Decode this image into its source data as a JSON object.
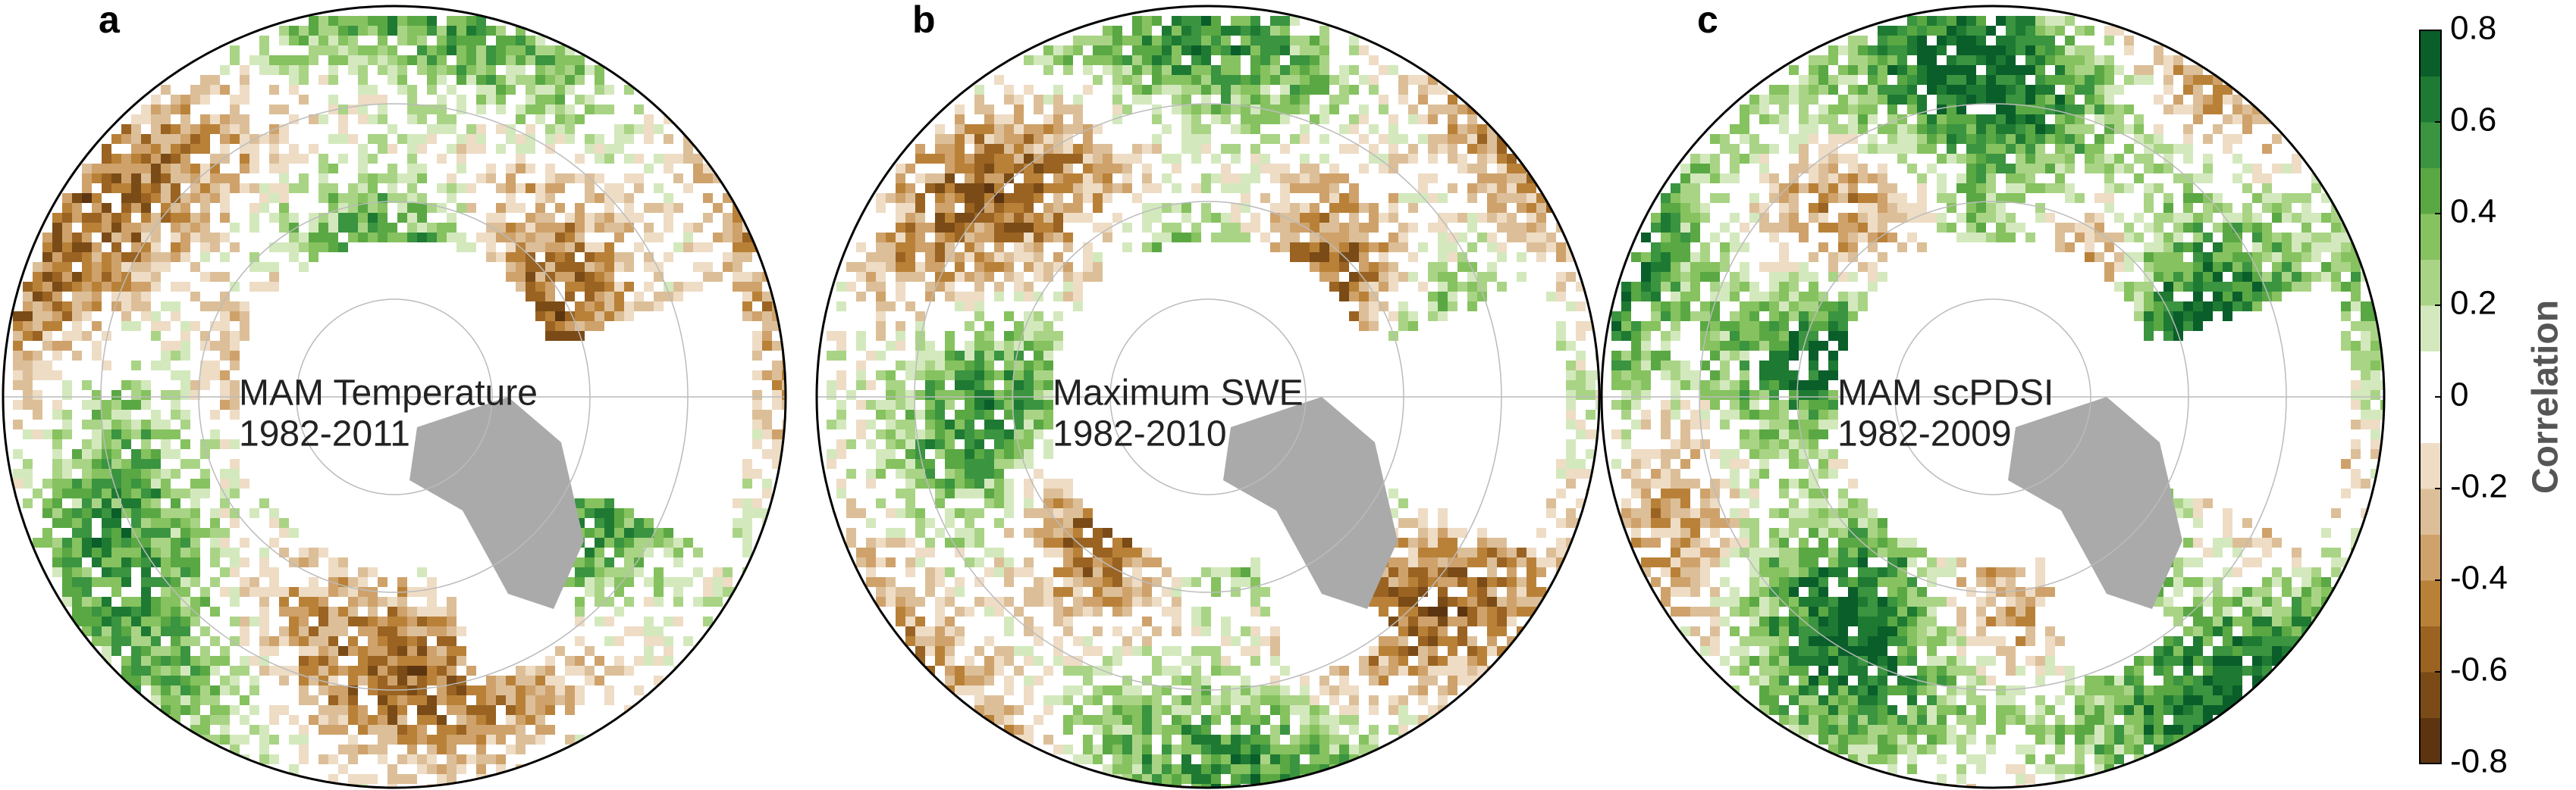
{
  "panels": [
    {
      "letter": "a",
      "variable": "MAM Temperature",
      "period": "1982-2011"
    },
    {
      "letter": "b",
      "variable": "Maximum SWE",
      "period": "1982-2010"
    },
    {
      "letter": "c",
      "variable": "MAM scPDSI",
      "period": "1982-2009"
    }
  ],
  "colorbar": {
    "label": "Correlation",
    "lim": [
      -0.8,
      0.8
    ],
    "ticks": [
      -0.8,
      -0.6,
      -0.4,
      -0.2,
      0,
      0.2,
      0.4,
      0.6,
      0.8
    ],
    "colors": [
      "#5c3510",
      "#7a4b16",
      "#9a6322",
      "#b98138",
      "#cfa26b",
      "#dcbf98",
      "#eedcc5",
      "#ffffff",
      "#ffffff",
      "#d3e9bd",
      "#a9d485",
      "#86c25f",
      "#5aa843",
      "#3a9440",
      "#1e7a32",
      "#0a5e2a"
    ]
  }
}
